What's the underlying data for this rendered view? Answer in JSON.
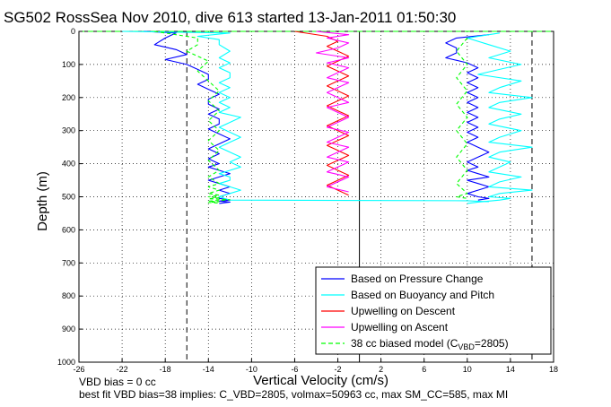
{
  "chart_data": {
    "type": "line",
    "title": "SG502 RossSea Nov 2010, dive 613 started 13-Jan-2011 01:50:30",
    "xlabel": "Vertical Velocity (cm/s)",
    "ylabel": "Depth (m)",
    "xlim": [
      -26,
      18
    ],
    "ylim": [
      0,
      1000
    ],
    "y_reversed": true,
    "grid": true,
    "x_ticks": [
      -26,
      -22,
      -18,
      -14,
      -10,
      -6,
      -2,
      2,
      6,
      10,
      14,
      18
    ],
    "y_ticks": [
      0,
      100,
      200,
      300,
      400,
      500,
      600,
      700,
      800,
      900,
      1000
    ],
    "legend_position": "bottom-right",
    "series": [
      {
        "name": "Based on Pressure Change",
        "color": "#0000ff",
        "segments": [
          {
            "x": [
              -20,
              -17,
              -18,
              -19,
              -17,
              -16,
              -18,
              -16,
              -15,
              -14,
              -14,
              -15,
              -14,
              -13,
              -14,
              -14,
              -13,
              -14,
              -13,
              -13,
              -14,
              -13,
              -12,
              -13,
              -14,
              -13,
              -14,
              -13,
              -14,
              -13,
              -12,
              -13,
              -14,
              -13,
              -12,
              -13,
              -12,
              -13,
              -13,
              -12,
              -13,
              -12,
              -13
            ],
            "y": [
              0,
              5,
              20,
              40,
              55,
              70,
              85,
              100,
              115,
              130,
              145,
              160,
              175,
              190,
              205,
              220,
              235,
              250,
              265,
              280,
              295,
              310,
              325,
              340,
              355,
              370,
              385,
              400,
              410,
              420,
              430,
              440,
              450,
              460,
              470,
              480,
              490,
              500,
              505,
              510,
              513,
              516,
              520
            ]
          },
          {
            "x": [
              12,
              9,
              8,
              9,
              9,
              8,
              10,
              11,
              10,
              11,
              10,
              11,
              10,
              11,
              10,
              11,
              10,
              11,
              10,
              11,
              10,
              11,
              10,
              11,
              12,
              11,
              10,
              11,
              10,
              11,
              12,
              10,
              11,
              12,
              11,
              10,
              11,
              12,
              11
            ],
            "y": [
              10,
              20,
              35,
              50,
              65,
              80,
              95,
              110,
              125,
              140,
              155,
              170,
              185,
              200,
              215,
              230,
              245,
              260,
              275,
              290,
              305,
              320,
              335,
              350,
              365,
              380,
              395,
              410,
              420,
              430,
              440,
              450,
              460,
              470,
              480,
              490,
              500,
              505,
              510
            ]
          }
        ]
      },
      {
        "name": "Based on Buoyancy and Pitch",
        "color": "#00ffff",
        "segments": [
          {
            "x": [
              -22,
              -12,
              -15,
              -13,
              -13,
              -12,
              -13,
              -12,
              -13,
              -12,
              -12,
              -13,
              -12,
              -13,
              -12,
              -13,
              -12,
              -13,
              -11,
              -12,
              -13,
              -12,
              -11,
              -12,
              -13,
              -12,
              -11,
              -12,
              -11,
              -12,
              -13,
              -12,
              -12,
              -13,
              -12,
              -11,
              -12,
              -13,
              -12,
              10,
              12
            ],
            "y": [
              0,
              5,
              15,
              25,
              40,
              60,
              80,
              95,
              110,
              125,
              140,
              155,
              170,
              185,
              200,
              215,
              230,
              245,
              260,
              275,
              290,
              305,
              320,
              335,
              350,
              365,
              380,
              395,
              410,
              420,
              430,
              440,
              450,
              460,
              470,
              480,
              490,
              500,
              510,
              512,
              515
            ]
          },
          {
            "x": [
              13,
              10,
              12,
              14,
              12,
              15,
              13,
              11,
              15,
              13,
              12,
              16,
              13,
              12,
              15,
              13,
              12,
              15,
              13,
              12,
              16,
              13,
              12,
              14,
              13,
              12,
              15,
              13,
              12,
              16,
              13,
              12,
              14,
              13,
              12,
              11,
              10
            ],
            "y": [
              5,
              20,
              40,
              60,
              80,
              100,
              115,
              130,
              150,
              170,
              185,
              200,
              215,
              230,
              250,
              265,
              280,
              300,
              320,
              335,
              350,
              365,
              380,
              395,
              410,
              425,
              440,
              455,
              470,
              480,
              490,
              500,
              505,
              510,
              513,
              516,
              520
            ]
          }
        ]
      },
      {
        "name": "Upwelling on Descent",
        "color": "#ff0000",
        "segments": [
          {
            "x": [
              -6,
              -3,
              -2,
              -3,
              -2,
              -1,
              -2,
              -3,
              -2,
              -1,
              -2,
              -3,
              -2,
              -1,
              -2,
              -3,
              -2,
              -1,
              -2,
              -3,
              -2,
              -1,
              -2,
              -3,
              -2,
              -1,
              -2,
              -3,
              -2,
              -1,
              -2,
              -3,
              -2,
              -1
            ],
            "y": [
              0,
              15,
              30,
              45,
              60,
              75,
              90,
              105,
              120,
              135,
              150,
              165,
              180,
              195,
              210,
              225,
              240,
              255,
              270,
              285,
              300,
              315,
              330,
              345,
              360,
              375,
              390,
              405,
              420,
              435,
              450,
              465,
              480,
              495
            ]
          }
        ]
      },
      {
        "name": "Upwelling on Ascent",
        "color": "#ff00ff",
        "segments": [
          {
            "x": [
              -4,
              -1,
              -3,
              -1,
              -2,
              -4,
              -1,
              -3,
              -1,
              -2,
              -3,
              -1,
              -2,
              -3,
              -2,
              -1,
              -3,
              -2,
              -1,
              -2,
              -3,
              -1,
              -2,
              -3,
              -1,
              -2,
              -3,
              -1,
              -2,
              -3,
              -1,
              -2,
              -3,
              -1
            ],
            "y": [
              0,
              10,
              20,
              35,
              50,
              65,
              80,
              95,
              110,
              125,
              140,
              155,
              170,
              185,
              200,
              215,
              230,
              245,
              260,
              275,
              290,
              305,
              320,
              335,
              350,
              365,
              380,
              395,
              410,
              425,
              440,
              455,
              470,
              485
            ]
          }
        ]
      },
      {
        "name": "38 cc biased model (C_VBD=2805)",
        "color": "#00ff00",
        "segments": [
          {
            "x": [
              -19,
              -15,
              -15,
              -16,
              -14,
              -15,
              -14,
              -13,
              -14,
              -13,
              -14,
              -13,
              -14,
              -13,
              -14,
              -13,
              -14,
              -13,
              -14,
              -13,
              -14,
              -13,
              -14,
              -13,
              -14,
              -12,
              -13,
              -14,
              -13,
              -14,
              -13
            ],
            "y": [
              0,
              20,
              40,
              60,
              90,
              120,
              150,
              180,
              210,
              240,
              270,
              300,
              330,
              360,
              390,
              420,
              440,
              460,
              470,
              480,
              490,
              495,
              500,
              503,
              506,
              509,
              511,
              513,
              515,
              517,
              519
            ]
          },
          {
            "x": [
              10,
              9,
              10,
              9,
              10,
              9,
              10,
              9,
              10,
              9,
              10,
              9,
              10,
              9,
              10
            ],
            "y": [
              20,
              60,
              100,
              140,
              180,
              220,
              260,
              300,
              340,
              380,
              420,
              460,
              490,
              500,
              505
            ]
          }
        ]
      }
    ],
    "reference_lines": [
      {
        "orientation": "vertical",
        "x": -16,
        "style": "dashed",
        "color": "#000000"
      },
      {
        "orientation": "vertical",
        "x": 16,
        "style": "dashed",
        "color": "#000000"
      },
      {
        "orientation": "vertical",
        "x": 0,
        "style": "solid",
        "color": "#000000"
      },
      {
        "orientation": "horizontal",
        "y": 0,
        "style": "dashed",
        "color": "#00ff00"
      }
    ],
    "legend": [
      {
        "label": "Based on Pressure Change",
        "color": "#0000ff",
        "style": "solid"
      },
      {
        "label": "Based on Buoyancy and Pitch",
        "color": "#00ffff",
        "style": "solid"
      },
      {
        "label": "Upwelling on Descent",
        "color": "#ff0000",
        "style": "solid"
      },
      {
        "label": "Upwelling on Ascent",
        "color": "#ff00ff",
        "style": "solid"
      },
      {
        "label_prefix": "38 cc biased model (C",
        "label_sub": "VBD",
        "label_suffix": "=2805)",
        "color": "#00ff00",
        "style": "dashed"
      }
    ]
  },
  "footer": {
    "line1": "VBD bias = 0 cc",
    "line2": "best fit VBD bias=38 implies: C_VBD=2805, volmax=50963 cc, max SM_CC=585, max MI"
  }
}
